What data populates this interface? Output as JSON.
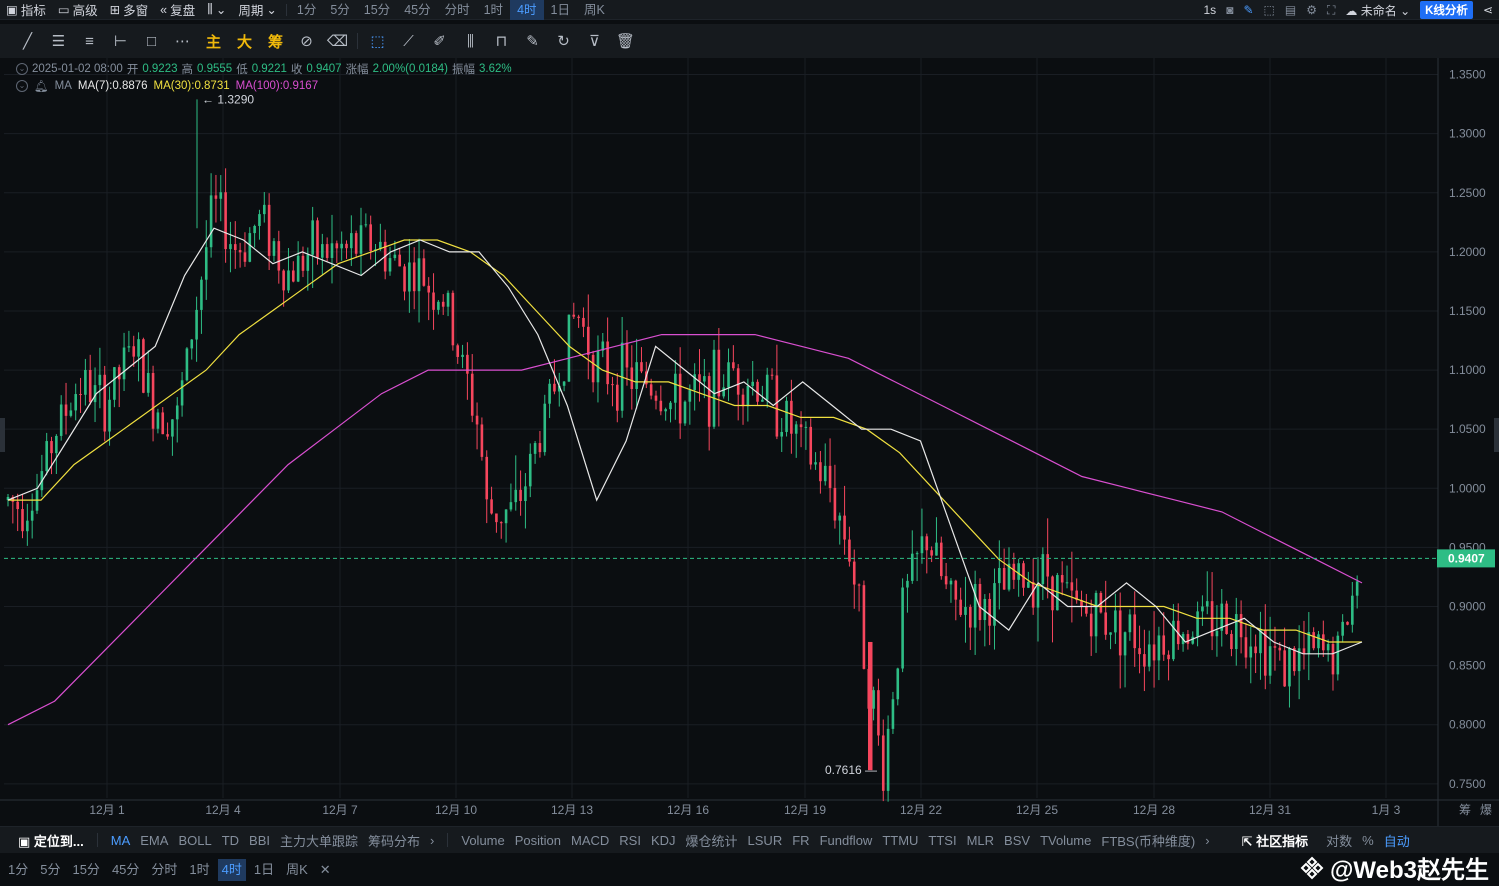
{
  "topbar": {
    "indicators_label": "指标",
    "advanced_label": "高级",
    "multi_label": "多窗",
    "replay_label": "复盘",
    "period_label": "周期",
    "intervals": [
      "1分",
      "5分",
      "15分",
      "45分",
      "分时",
      "1时",
      "4时",
      "1日",
      "周K"
    ],
    "active_interval": "4时",
    "refresh": "1s",
    "layout_name": "未命名",
    "kline_analysis": "K线分析"
  },
  "toolbar": {
    "main_label": "主",
    "big_label": "大",
    "chips_label": "筹"
  },
  "legend": {
    "datetime": "2025-01-02 08:00",
    "open_label": "开",
    "open": "0.9223",
    "high_label": "高",
    "high": "0.9555",
    "low_label": "低",
    "low": "0.9221",
    "close_label": "收",
    "close": "0.9407",
    "change_label": "涨幅",
    "change": "2.00%(0.0184)",
    "amp_label": "振幅",
    "amplitude": "3.62%",
    "ma_label": "MA",
    "ma7": "MA(7):0.8876",
    "ma30": "MA(30):0.8731",
    "ma100": "MA(100):0.9167"
  },
  "colors": {
    "up": "#2ebd85",
    "down": "#f6465d",
    "ma7": "#e8e8e8",
    "ma30": "#f0e040",
    "ma100": "#d94fd0",
    "price_line": "#2ebd85",
    "accent": "#4b9cff"
  },
  "chart_data": {
    "type": "candlestick",
    "yticks": [
      "1.3500",
      "1.3000",
      "1.2500",
      "1.2000",
      "1.1500",
      "1.1000",
      "1.0500",
      "1.0000",
      "0.9500",
      "0.9000",
      "0.8500",
      "0.8000",
      "0.7500"
    ],
    "ylim": [
      0.738,
      1.364
    ],
    "xticks": [
      "12月 1",
      "12月 4",
      "12月 7",
      "12月 10",
      "12月 13",
      "12月 16",
      "12月 19",
      "12月 22",
      "12月 25",
      "12月 28",
      "12月 31",
      "1月 3"
    ],
    "current_price": "0.9407",
    "high_annotation": "1.3290",
    "low_annotation": "0.7616",
    "ma7": [
      0.99,
      1.0,
      1.04,
      1.08,
      1.1,
      1.12,
      1.18,
      1.22,
      1.21,
      1.19,
      1.2,
      1.19,
      1.18,
      1.2,
      1.21,
      1.2,
      1.2,
      1.17,
      1.13,
      1.07,
      0.99,
      1.04,
      1.12,
      1.1,
      1.08,
      1.09,
      1.07,
      1.09,
      1.07,
      1.05,
      1.05,
      1.04,
      0.97,
      0.9,
      0.88,
      0.92,
      0.9,
      0.9,
      0.92,
      0.9,
      0.87,
      0.88,
      0.89,
      0.87,
      0.86,
      0.86,
      0.87
    ],
    "ma30": [
      0.99,
      0.99,
      1.02,
      1.04,
      1.06,
      1.08,
      1.1,
      1.13,
      1.15,
      1.17,
      1.19,
      1.2,
      1.21,
      1.21,
      1.2,
      1.18,
      1.15,
      1.12,
      1.1,
      1.09,
      1.09,
      1.08,
      1.07,
      1.07,
      1.06,
      1.06,
      1.05,
      1.03,
      1.0,
      0.97,
      0.94,
      0.92,
      0.91,
      0.9,
      0.9,
      0.9,
      0.89,
      0.89,
      0.88,
      0.88,
      0.87,
      0.87
    ],
    "ma100": [
      0.8,
      0.82,
      0.86,
      0.9,
      0.94,
      0.98,
      1.02,
      1.05,
      1.08,
      1.1,
      1.1,
      1.1,
      1.11,
      1.12,
      1.13,
      1.13,
      1.13,
      1.12,
      1.11,
      1.09,
      1.07,
      1.05,
      1.03,
      1.01,
      1.0,
      0.99,
      0.98,
      0.96,
      0.94,
      0.92
    ]
  },
  "bottom": {
    "locate_label": "定位到...",
    "main_indicators": [
      "MA",
      "EMA",
      "BOLL",
      "TD",
      "BBI",
      "主力大单跟踪",
      "筹码分布"
    ],
    "sub_indicators": [
      "Volume",
      "Position",
      "MACD",
      "RSI",
      "KDJ",
      "爆仓统计",
      "LSUR",
      "FR",
      "Fundflow",
      "TTMU",
      "TTSI",
      "MLR",
      "BSV",
      "TVolume",
      "FTBS(币种维度)"
    ],
    "community": "社区指标",
    "log_label": "对数",
    "pct_label": "%",
    "auto_label": "自动",
    "intervals": [
      "1分",
      "5分",
      "15分",
      "45分",
      "分时",
      "1时",
      "4时",
      "1日",
      "周K"
    ],
    "active_interval": "4时",
    "watermark": "@Web3赵先生"
  }
}
